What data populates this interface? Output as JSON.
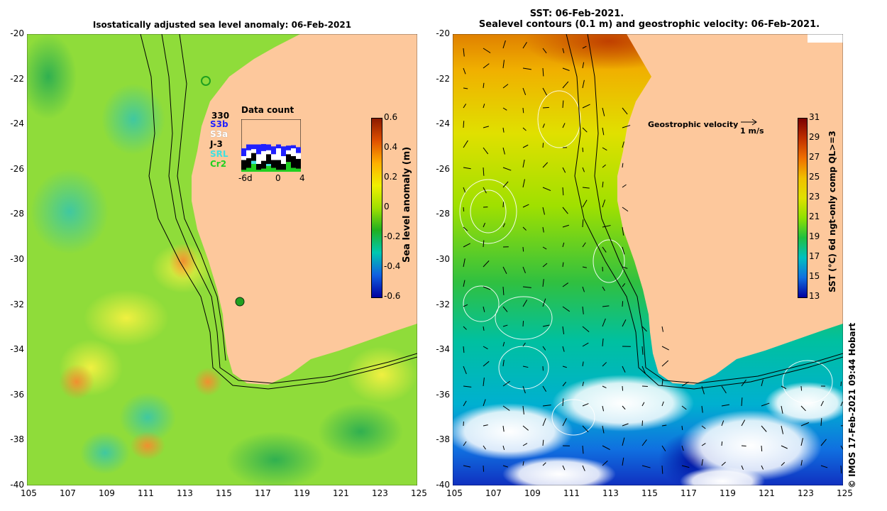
{
  "left_panel": {
    "title": "Isostatically adjusted sea level anomaly: 06-Feb-2021",
    "x_ticks": [
      "105",
      "107",
      "109",
      "111",
      "113",
      "115",
      "117",
      "119",
      "121",
      "123",
      "125"
    ],
    "y_ticks": [
      "-20",
      "-22",
      "-24",
      "-26",
      "-28",
      "-30",
      "-32",
      "-34",
      "-36",
      "-38",
      "-40"
    ],
    "colorbar": {
      "label": "Sea level anomaly (m)",
      "ticks": [
        "0.6",
        "0.4",
        "0.2",
        "0",
        "-0.2",
        "-0.4",
        "-0.6"
      ],
      "colors": [
        "#8b1a00",
        "#e05000",
        "#ffb000",
        "#f0f000",
        "#a0e000",
        "#20b020",
        "#00c8b0",
        "#1060e0",
        "#0000a0"
      ]
    },
    "data_count": {
      "title": "Data count",
      "max_label": "330",
      "x_ticks": [
        "-6d",
        "0",
        "4"
      ],
      "missions": [
        {
          "name": "S3b",
          "color": "#2020ff"
        },
        {
          "name": "S3a",
          "color": "#ffffff"
        },
        {
          "name": "J-3",
          "color": "#000000"
        },
        {
          "name": "SRL",
          "color": "#40e0e0"
        },
        {
          "name": "Cr2",
          "color": "#20d020"
        }
      ]
    }
  },
  "right_panel": {
    "title_line1": "SST: 06-Feb-2021.",
    "title_line2": "Sealevel contours (0.1 m) and geostrophic velocity: 06-Feb-2021.",
    "x_ticks": [
      "105",
      "107",
      "109",
      "111",
      "113",
      "115",
      "117",
      "119",
      "121",
      "123",
      "125"
    ],
    "y_ticks": [
      "-20",
      "-22",
      "-24",
      "-26",
      "-28",
      "-30",
      "-32",
      "-34",
      "-36",
      "-38",
      "-40"
    ],
    "velocity_label": "Geostrophic velocity",
    "velocity_scale": "1 m/s",
    "colorbar": {
      "label": "SST (°C) 6d ngt-only comp QL>=3",
      "ticks": [
        "31",
        "29",
        "27",
        "25",
        "23",
        "21",
        "19",
        "17",
        "15",
        "13"
      ],
      "colors": [
        "#7a0000",
        "#c03000",
        "#f07000",
        "#f0c000",
        "#e0e000",
        "#90e000",
        "#20c040",
        "#00c0c0",
        "#1070e0",
        "#0000a0"
      ]
    }
  },
  "credit": "© IMOS 17-Feb-2021 09:44 Hobart",
  "colors": {
    "land": "#fdc89c",
    "ocean_mid": "#8fdc3a",
    "grid": "#000000"
  }
}
